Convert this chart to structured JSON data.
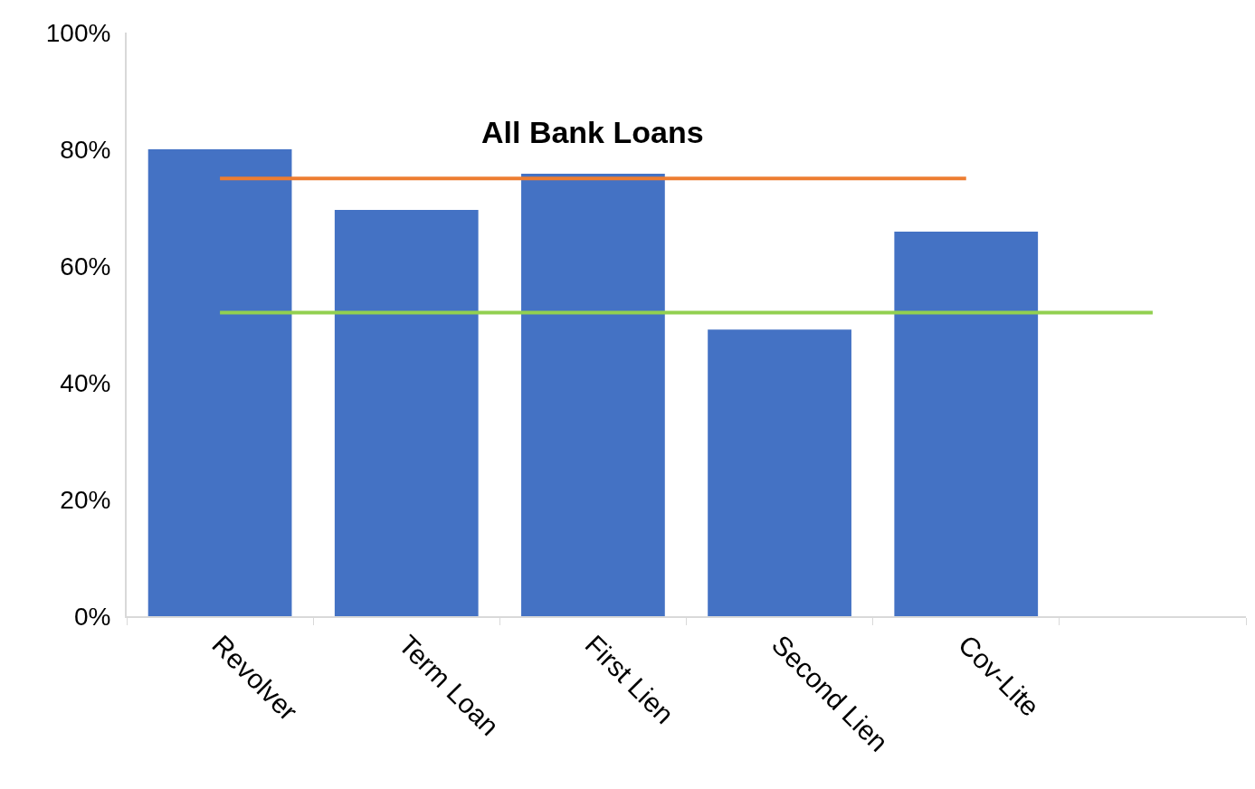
{
  "chart_data": {
    "type": "bar",
    "categories": [
      "Revolver",
      "Term Loan",
      "First Lien",
      "Second Lien",
      "Cov-Lite",
      null
    ],
    "series": [
      {
        "color": "#4472c4",
        "values": [
          80,
          69.6,
          75.8,
          49.1,
          65.9,
          null
        ]
      },
      {
        "name": "All Bank Loans",
        "type": "line",
        "color": "#ed7d31",
        "values": [
          75,
          75,
          75,
          75,
          75,
          null
        ]
      },
      {
        "type": "line",
        "color": "#92d050",
        "values": [
          52,
          52,
          52,
          52,
          52,
          52
        ]
      }
    ],
    "ylim": [
      0,
      100
    ],
    "yticks": [
      {
        "value": 0,
        "label": "0%"
      },
      {
        "value": 20,
        "label": "20%"
      },
      {
        "value": 40,
        "label": "40%"
      },
      {
        "value": 60,
        "label": "60%"
      },
      {
        "value": 80,
        "label": "80%"
      },
      {
        "value": 100,
        "label": "100%"
      }
    ],
    "legend": false,
    "marker": "none",
    "line_style": "solid"
  }
}
